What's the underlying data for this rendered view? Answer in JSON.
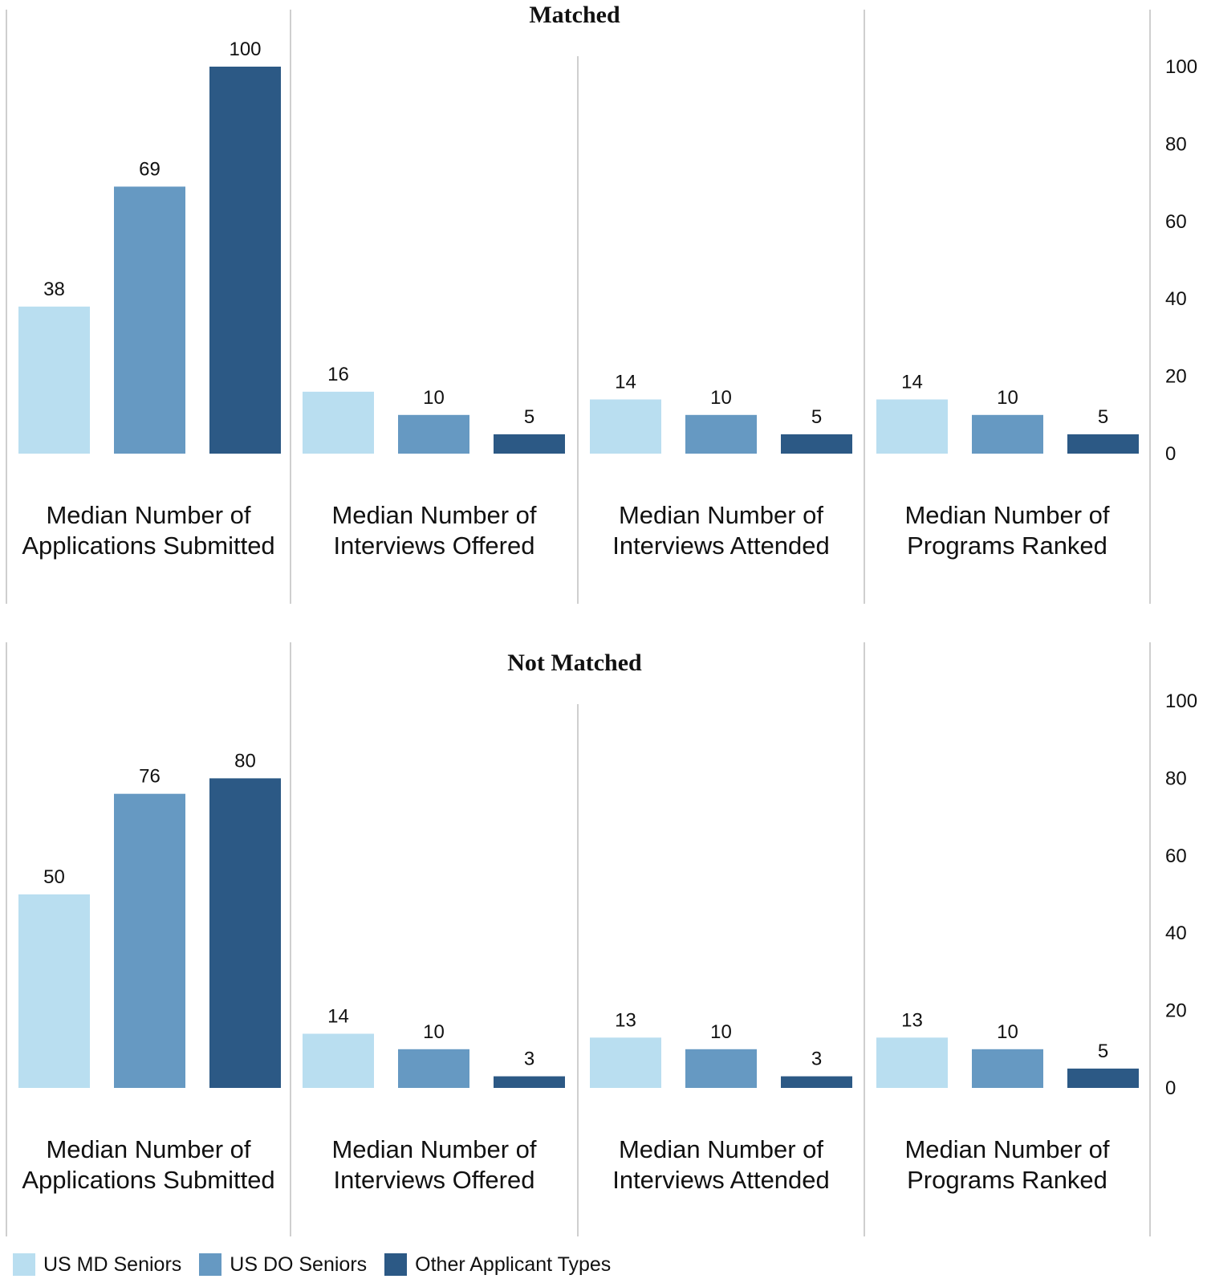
{
  "chart_data": [
    {
      "type": "bar",
      "title": "Matched",
      "categories": [
        [
          "Median Number of",
          "Applications Submitted"
        ],
        [
          "Median Number of",
          "Interviews Offered"
        ],
        [
          "Median Number of",
          "Interviews Attended"
        ],
        [
          "Median Number of",
          "Programs Ranked"
        ]
      ],
      "series": [
        {
          "name": "US MD Seniors",
          "values": [
            38,
            16,
            14,
            14
          ]
        },
        {
          "name": "US DO Seniors",
          "values": [
            69,
            10,
            10,
            10
          ]
        },
        {
          "name": "Other Applicant Types",
          "values": [
            100,
            5,
            5,
            5
          ]
        }
      ],
      "ylim": [
        0,
        100
      ],
      "yticks": [
        0,
        20,
        40,
        60,
        80,
        100
      ],
      "y_axis_side": "right",
      "grid": false
    },
    {
      "type": "bar",
      "title": "Not Matched",
      "categories": [
        [
          "Median Number of",
          "Applications Submitted"
        ],
        [
          "Median Number of",
          "Interviews Offered"
        ],
        [
          "Median Number of",
          "Interviews Attended"
        ],
        [
          "Median Number of",
          "Programs Ranked"
        ]
      ],
      "series": [
        {
          "name": "US MD Seniors",
          "values": [
            50,
            14,
            13,
            13
          ]
        },
        {
          "name": "US DO Seniors",
          "values": [
            76,
            10,
            10,
            10
          ]
        },
        {
          "name": "Other Applicant Types",
          "values": [
            80,
            3,
            3,
            5
          ]
        }
      ],
      "ylim": [
        0,
        100
      ],
      "yticks": [
        0,
        20,
        40,
        60,
        80,
        100
      ],
      "y_axis_side": "right",
      "grid": false
    }
  ],
  "legend": {
    "placement": "bottom-left",
    "items": [
      {
        "label": "US MD Seniors",
        "color": "#b9def0"
      },
      {
        "label": "US DO Seniors",
        "color": "#6699c2"
      },
      {
        "label": "Other Applicant Types",
        "color": "#2c5985"
      }
    ]
  },
  "colors": {
    "series": [
      "#b9def0",
      "#6699c2",
      "#2c5985"
    ],
    "divider": "#cfcfcf"
  }
}
